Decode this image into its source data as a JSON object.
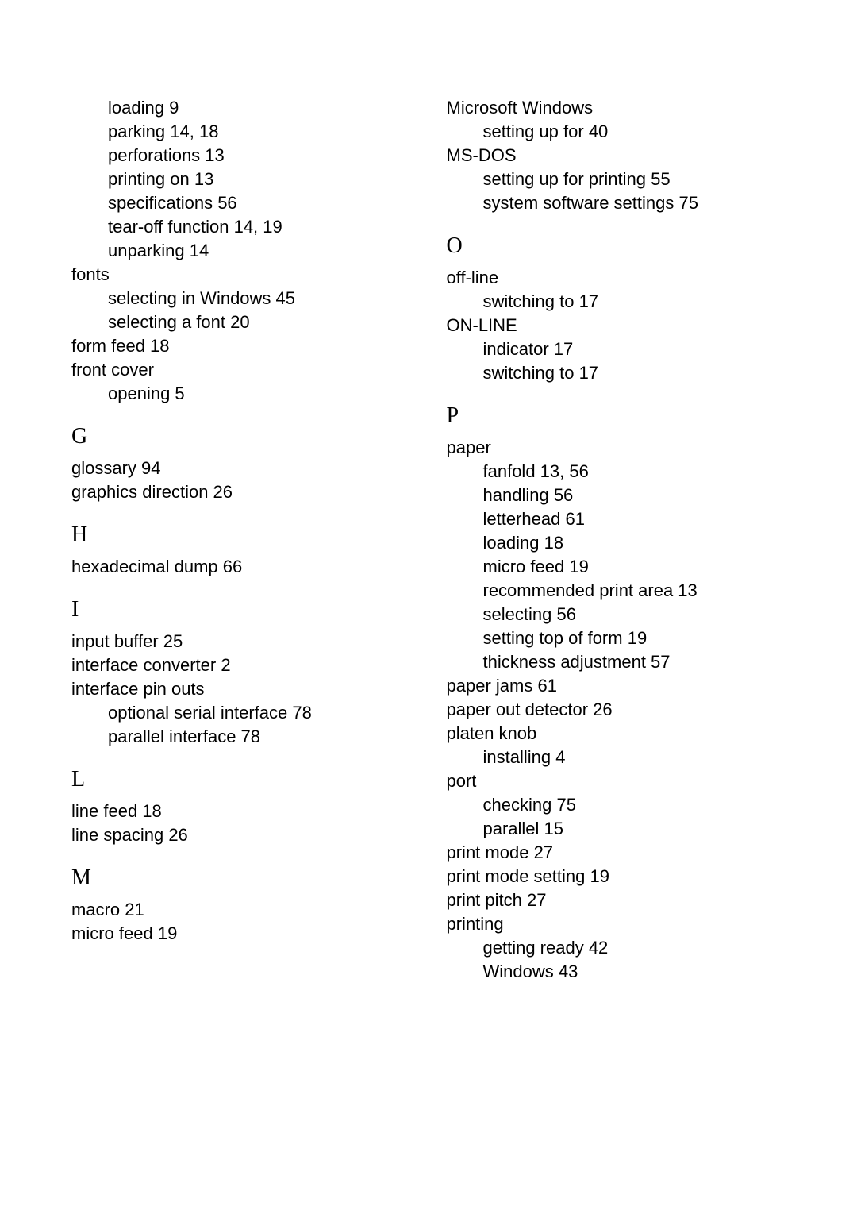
{
  "left": {
    "cont": [
      {
        "label": "loading ",
        "page": "9",
        "sub": true
      },
      {
        "label": "parking ",
        "page": "14, 18",
        "sub": true
      },
      {
        "label": "perforations ",
        "page": "13",
        "sub": true
      },
      {
        "label": "printing on ",
        "page": "13",
        "sub": true
      },
      {
        "label": "specifications ",
        "page": "56",
        "sub": true
      },
      {
        "label": "tear-off function ",
        "page": "14, 19",
        "sub": true
      },
      {
        "label": "unparking ",
        "page": "14",
        "sub": true
      },
      {
        "label": "fonts",
        "page": "",
        "sub": false
      },
      {
        "label": "selecting in Windows 45",
        "page": "",
        "sub": true
      },
      {
        "label": "selecting a font 20",
        "page": "",
        "sub": true
      },
      {
        "label": "form feed ",
        "page": "18",
        "sub": false
      },
      {
        "label": "front cover",
        "page": "",
        "sub": false
      },
      {
        "label": "opening ",
        "page": "5",
        "sub": true
      }
    ],
    "G": [
      {
        "label": "glossary ",
        "page": "94",
        "sub": false
      },
      {
        "label": "graphics direction ",
        "page": "26",
        "sub": false
      }
    ],
    "H": [
      {
        "label": "hexadecimal dump ",
        "page": "66",
        "sub": false
      }
    ],
    "I": [
      {
        "label": "input buffer ",
        "page": "25",
        "sub": false
      },
      {
        "label": "interface converter ",
        "page": "2",
        "sub": false
      },
      {
        "label": "interface pin outs",
        "page": "",
        "sub": false
      },
      {
        "label": "optional serial interface ",
        "page": "78",
        "sub": true
      },
      {
        "label": "parallel interface ",
        "page": "78",
        "sub": true
      }
    ],
    "L": [
      {
        "label": "line feed ",
        "page": "18",
        "sub": false
      },
      {
        "label": "line spacing ",
        "page": "26",
        "sub": false
      }
    ],
    "M": [
      {
        "label": "macro ",
        "page": "21",
        "sub": false
      },
      {
        "label": "micro feed ",
        "page": "19",
        "sub": false
      }
    ]
  },
  "right": {
    "cont": [
      {
        "label": "Microsoft Windows",
        "page": "",
        "sub": false
      },
      {
        "label": "setting up for ",
        "page": "40",
        "sub": true
      },
      {
        "label": "MS-DOS",
        "page": "",
        "sub": false
      },
      {
        "label": "setting up for printing ",
        "page": "55",
        "sub": true
      },
      {
        "label": "system software settings ",
        "page": "75",
        "sub": true
      }
    ],
    "O": [
      {
        "label": "off-line",
        "page": "",
        "sub": false
      },
      {
        "label": "switching to ",
        "page": "17",
        "sub": true
      },
      {
        "label": "ON-LINE",
        "page": "",
        "sub": false
      },
      {
        "label": "indicator ",
        "page": "17",
        "sub": true
      },
      {
        "label": "switching to ",
        "page": "17",
        "sub": true
      }
    ],
    "P": [
      {
        "label": "paper",
        "page": "",
        "sub": false
      },
      {
        "label": "fanfold ",
        "page": "13, 56",
        "sub": true
      },
      {
        "label": "handling ",
        "page": "56",
        "sub": true
      },
      {
        "label": "letterhead ",
        "page": "61",
        "sub": true
      },
      {
        "label": "loading ",
        "page": "18",
        "sub": true
      },
      {
        "label": "micro feed ",
        "page": "19",
        "sub": true
      },
      {
        "label": "recommended print area ",
        "page": "13",
        "sub": true
      },
      {
        "label": "selecting ",
        "page": "56",
        "sub": true
      },
      {
        "label": "setting top of form ",
        "page": "19",
        "sub": true
      },
      {
        "label": "thickness adjustment ",
        "page": "57",
        "sub": true
      },
      {
        "label": "paper jams ",
        "page": "61",
        "sub": false
      },
      {
        "label": "paper out detector ",
        "page": "26",
        "sub": false
      },
      {
        "label": "platen knob",
        "page": "",
        "sub": false
      },
      {
        "label": "installing ",
        "page": "4",
        "sub": true
      },
      {
        "label": "port",
        "page": "",
        "sub": false
      },
      {
        "label": "checking ",
        "page": "75",
        "sub": true
      },
      {
        "label": "parallel ",
        "page": "15",
        "sub": true
      },
      {
        "label": "print mode ",
        "page": "27",
        "sub": false
      },
      {
        "label": "print mode setting ",
        "page": "19",
        "sub": false
      },
      {
        "label": "print pitch ",
        "page": "27",
        "sub": false
      },
      {
        "label": "printing",
        "page": "",
        "sub": false
      },
      {
        "label": "getting ready ",
        "page": "42",
        "sub": true
      },
      {
        "label": "Windows ",
        "page": "43",
        "sub": true
      }
    ]
  },
  "headings": {
    "G": "G",
    "H": "H",
    "I": "I",
    "L": "L",
    "M": "M",
    "O": "O",
    "P": "P"
  }
}
